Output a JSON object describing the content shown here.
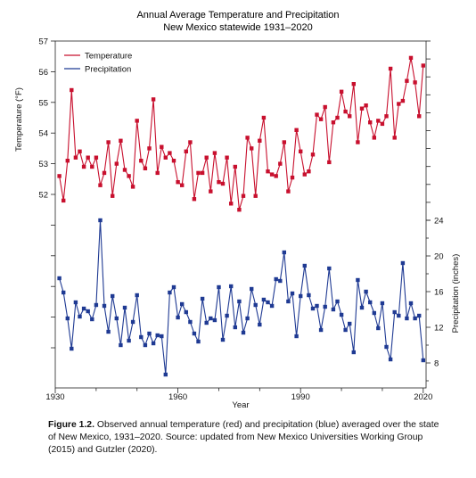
{
  "chart_data": {
    "type": "line",
    "title": "Annual Average Temperature and Precipitation",
    "subtitle": "New Mexico statewide 1931–2020",
    "xlabel": "Year",
    "ylabel_left": "Temperature (°F)",
    "ylabel_right": "Precipitation (inches)",
    "x_ticks": [
      "1930",
      "1960",
      "1990",
      "2020"
    ],
    "x_tick_values": [
      1930,
      1960,
      1990,
      2020
    ],
    "y_left_ticks": [
      "57",
      "56",
      "55",
      "54",
      "53",
      "52"
    ],
    "y_left_tick_values": [
      57,
      56,
      55,
      54,
      53,
      52
    ],
    "y_right_ticks": [
      "24",
      "20",
      "16",
      "12",
      "8"
    ],
    "y_right_tick_values": [
      24,
      20,
      16,
      12,
      8
    ],
    "legend_position": "top-left",
    "series": [
      {
        "name": "Temperature",
        "axis": "left",
        "color": "#c8102e",
        "x": [
          1931,
          1932,
          1933,
          1934,
          1935,
          1936,
          1937,
          1938,
          1939,
          1940,
          1941,
          1942,
          1943,
          1944,
          1945,
          1946,
          1947,
          1948,
          1949,
          1950,
          1951,
          1952,
          1953,
          1954,
          1955,
          1956,
          1957,
          1958,
          1959,
          1960,
          1961,
          1962,
          1963,
          1964,
          1965,
          1966,
          1967,
          1968,
          1969,
          1970,
          1971,
          1972,
          1973,
          1974,
          1975,
          1976,
          1977,
          1978,
          1979,
          1980,
          1981,
          1982,
          1983,
          1984,
          1985,
          1986,
          1987,
          1988,
          1989,
          1990,
          1991,
          1992,
          1993,
          1994,
          1995,
          1996,
          1997,
          1998,
          1999,
          2000,
          2001,
          2002,
          2003,
          2004,
          2005,
          2006,
          2007,
          2008,
          2009,
          2010,
          2011,
          2012,
          2013,
          2014,
          2015,
          2016,
          2017,
          2018,
          2019,
          2020
        ],
        "values": [
          52.6,
          51.8,
          53.1,
          55.4,
          53.2,
          53.4,
          52.9,
          53.2,
          52.9,
          53.2,
          52.3,
          52.7,
          53.7,
          51.95,
          53.0,
          53.75,
          52.8,
          52.6,
          52.25,
          54.4,
          53.1,
          52.85,
          53.5,
          55.1,
          52.7,
          53.55,
          53.2,
          53.35,
          53.1,
          52.4,
          52.3,
          53.4,
          53.7,
          51.85,
          52.7,
          52.7,
          53.2,
          52.1,
          53.35,
          52.4,
          52.35,
          53.2,
          51.7,
          52.9,
          51.5,
          51.95,
          53.85,
          53.5,
          51.95,
          53.75,
          54.5,
          52.75,
          52.65,
          52.6,
          53.0,
          53.7,
          52.1,
          52.55,
          54.1,
          53.4,
          52.65,
          52.75,
          53.3,
          54.6,
          54.45,
          54.85,
          53.05,
          54.35,
          54.5,
          55.35,
          54.7,
          54.55,
          55.6,
          53.7,
          54.8,
          54.9,
          54.35,
          53.85,
          54.4,
          54.3,
          54.55,
          56.1,
          53.85,
          54.95,
          55.05,
          55.7,
          56.45,
          55.65,
          54.55,
          56.2
        ]
      },
      {
        "name": "Precipitation",
        "axis": "right",
        "color": "#1f3a93",
        "x": [
          1931,
          1932,
          1933,
          1934,
          1935,
          1936,
          1937,
          1938,
          1939,
          1940,
          1941,
          1942,
          1943,
          1944,
          1945,
          1946,
          1947,
          1948,
          1949,
          1950,
          1951,
          1952,
          1953,
          1954,
          1955,
          1956,
          1957,
          1958,
          1959,
          1960,
          1961,
          1962,
          1963,
          1964,
          1965,
          1966,
          1967,
          1968,
          1969,
          1970,
          1971,
          1972,
          1973,
          1974,
          1975,
          1976,
          1977,
          1978,
          1979,
          1980,
          1981,
          1982,
          1983,
          1984,
          1985,
          1986,
          1987,
          1988,
          1989,
          1990,
          1991,
          1992,
          1993,
          1994,
          1995,
          1996,
          1997,
          1998,
          1999,
          2000,
          2001,
          2002,
          2003,
          2004,
          2005,
          2006,
          2007,
          2008,
          2009,
          2010,
          2011,
          2012,
          2013,
          2014,
          2015,
          2016,
          2017,
          2018,
          2019,
          2020
        ],
        "values": [
          17.5,
          15.9,
          13.0,
          9.6,
          14.8,
          13.2,
          14.1,
          13.8,
          12.9,
          14.5,
          24.0,
          14.4,
          11.5,
          15.5,
          13.0,
          10.0,
          14.2,
          10.5,
          12.6,
          15.6,
          10.9,
          10.0,
          11.3,
          10.2,
          11.1,
          11.0,
          6.7,
          15.9,
          16.5,
          13.1,
          14.6,
          13.7,
          12.6,
          11.3,
          10.4,
          15.2,
          12.5,
          13.0,
          12.8,
          16.5,
          10.6,
          13.3,
          16.6,
          12.0,
          14.9,
          11.4,
          13.0,
          16.3,
          14.5,
          12.3,
          15.1,
          14.8,
          14.4,
          17.4,
          17.2,
          20.4,
          14.9,
          15.8,
          11.0,
          15.5,
          18.9,
          15.6,
          14.1,
          14.4,
          11.7,
          14.3,
          18.6,
          14.0,
          14.9,
          13.4,
          11.7,
          12.4,
          9.2,
          17.3,
          14.2,
          16.0,
          14.8,
          13.6,
          11.9,
          14.7,
          9.8,
          8.4,
          13.7,
          13.3,
          19.2,
          13.0,
          14.7,
          13.0,
          13.3,
          8.3
        ]
      }
    ]
  },
  "caption": {
    "label": "Figure 1.2.",
    "text": " Observed annual temperature (red) and precipitation (blue) averaged over the state of New Mexico, 1931–2020. Source: updated from New Mexico Universities Working Group (2015) and Gutzler (2020)."
  }
}
